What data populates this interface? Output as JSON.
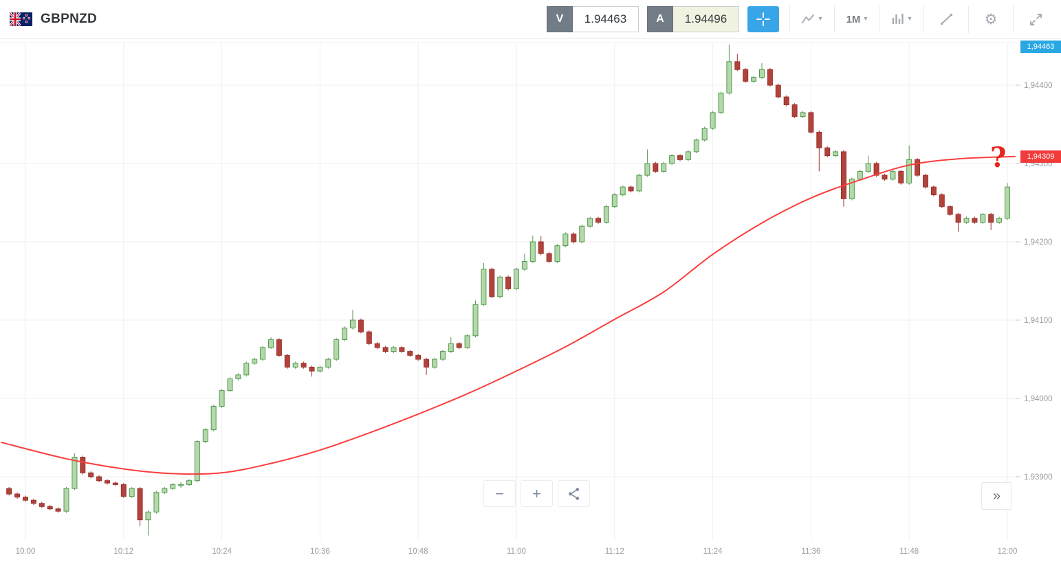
{
  "header": {
    "symbol": "GBPNZD",
    "sell_button": {
      "label": "V",
      "price": "1.94463"
    },
    "buy_button": {
      "label": "A",
      "price": "1.94496"
    },
    "timeframe": "1M"
  },
  "icons": {
    "caret_down": "▾",
    "gear": "⚙",
    "zoom_out": "−",
    "zoom_in": "+",
    "collapse_chevrons": "»"
  },
  "annotation": {
    "question_mark": "?"
  },
  "colors": {
    "up_fill": "#b4d8ab",
    "up_stroke": "#539a4e",
    "down_fill": "#b2423c",
    "down_stroke": "#9a322d",
    "ma_line": "#fb3e3e",
    "grid": "#efefef",
    "tick": "#c9c9c9",
    "axis_text": "#9b9b9b",
    "badge_current": "#29a7e3",
    "badge_ma": "#f23b3b",
    "accent_blue": "#38a5e8"
  },
  "chart_data": {
    "type": "candlestick",
    "title": "GBPNZD 1-minute chart",
    "timeframe": "1M",
    "grid": true,
    "current_price_label": "1,94463",
    "current_price": 1.94463,
    "ma_value_label": "1,94309",
    "ma_value": 1.94309,
    "y_axis": [
      {
        "price": 1.944,
        "label": "1,94400"
      },
      {
        "price": 1.943,
        "label": "1,94300"
      },
      {
        "price": 1.942,
        "label": "1,94200"
      },
      {
        "price": 1.941,
        "label": "1,94100"
      },
      {
        "price": 1.94,
        "label": "1,94000"
      },
      {
        "price": 1.939,
        "label": "1,93900"
      }
    ],
    "x_ticks": [
      {
        "minute": 0,
        "label": "10:00"
      },
      {
        "minute": 12,
        "label": "10:12"
      },
      {
        "minute": 24,
        "label": "10:24"
      },
      {
        "minute": 36,
        "label": "10:36"
      },
      {
        "minute": 48,
        "label": "10:48"
      },
      {
        "minute": 60,
        "label": "11:00"
      },
      {
        "minute": 72,
        "label": "11:12"
      },
      {
        "minute": 84,
        "label": "11:24"
      },
      {
        "minute": 96,
        "label": "11:36"
      },
      {
        "minute": 108,
        "label": "11:48"
      },
      {
        "minute": 120,
        "label": "12:00"
      }
    ],
    "start_minute": -2,
    "candle_format": "open,high,low,close",
    "candles": [
      [
        1.93885,
        1.93887,
        1.93876,
        1.93878
      ],
      [
        1.93878,
        1.9388,
        1.93872,
        1.93874
      ],
      [
        1.93874,
        1.93876,
        1.93868,
        1.9387
      ],
      [
        1.9387,
        1.93872,
        1.93864,
        1.93866
      ],
      [
        1.93866,
        1.93868,
        1.9386,
        1.93862
      ],
      [
        1.93862,
        1.93864,
        1.93857,
        1.93859
      ],
      [
        1.93859,
        1.93861,
        1.93854,
        1.93856
      ],
      [
        1.93856,
        1.93887,
        1.93854,
        1.93885
      ],
      [
        1.93885,
        1.9393,
        1.93883,
        1.93925
      ],
      [
        1.93925,
        1.93927,
        1.93903,
        1.93905
      ],
      [
        1.93905,
        1.93907,
        1.93898,
        1.939
      ],
      [
        1.939,
        1.93902,
        1.93893,
        1.93895
      ],
      [
        1.93895,
        1.93897,
        1.9389,
        1.93892
      ],
      [
        1.93892,
        1.93894,
        1.93888,
        1.9389
      ],
      [
        1.9389,
        1.93892,
        1.93873,
        1.93875
      ],
      [
        1.93875,
        1.93887,
        1.93873,
        1.93885
      ],
      [
        1.93885,
        1.93887,
        1.93837,
        1.93845
      ],
      [
        1.93845,
        1.93857,
        1.93825,
        1.93855
      ],
      [
        1.93855,
        1.93882,
        1.93853,
        1.9388
      ],
      [
        1.9388,
        1.93887,
        1.93878,
        1.93885
      ],
      [
        1.93885,
        1.93892,
        1.93883,
        1.9389
      ],
      [
        1.9389,
        1.93893,
        1.93886,
        1.9389
      ],
      [
        1.9389,
        1.93897,
        1.93888,
        1.93895
      ],
      [
        1.93895,
        1.93947,
        1.93893,
        1.93945
      ],
      [
        1.93945,
        1.93962,
        1.93943,
        1.9396
      ],
      [
        1.9396,
        1.93992,
        1.93958,
        1.9399
      ],
      [
        1.9399,
        1.94012,
        1.93988,
        1.9401
      ],
      [
        1.9401,
        1.94027,
        1.94008,
        1.94025
      ],
      [
        1.94025,
        1.94032,
        1.94023,
        1.9403
      ],
      [
        1.9403,
        1.94047,
        1.94028,
        1.94045
      ],
      [
        1.94045,
        1.94052,
        1.94043,
        1.9405
      ],
      [
        1.9405,
        1.94067,
        1.94048,
        1.94065
      ],
      [
        1.94065,
        1.94078,
        1.94063,
        1.94075
      ],
      [
        1.94075,
        1.94077,
        1.94053,
        1.94055
      ],
      [
        1.94055,
        1.94057,
        1.94038,
        1.9404
      ],
      [
        1.9404,
        1.94047,
        1.94038,
        1.94045
      ],
      [
        1.94045,
        1.94047,
        1.94038,
        1.9404
      ],
      [
        1.9404,
        1.94042,
        1.94028,
        1.94035
      ],
      [
        1.94035,
        1.94042,
        1.94033,
        1.9404
      ],
      [
        1.9404,
        1.94052,
        1.94038,
        1.9405
      ],
      [
        1.9405,
        1.94077,
        1.94048,
        1.94075
      ],
      [
        1.94075,
        1.94092,
        1.94073,
        1.9409
      ],
      [
        1.9409,
        1.94113,
        1.94088,
        1.941
      ],
      [
        1.941,
        1.94102,
        1.94083,
        1.94085
      ],
      [
        1.94085,
        1.94087,
        1.94068,
        1.9407
      ],
      [
        1.9407,
        1.94072,
        1.94063,
        1.94065
      ],
      [
        1.94065,
        1.94067,
        1.94058,
        1.9406
      ],
      [
        1.9406,
        1.94067,
        1.94058,
        1.94065
      ],
      [
        1.94065,
        1.94067,
        1.94058,
        1.9406
      ],
      [
        1.9406,
        1.94062,
        1.94053,
        1.94055
      ],
      [
        1.94055,
        1.94057,
        1.94048,
        1.9405
      ],
      [
        1.9405,
        1.94052,
        1.9403,
        1.9404
      ],
      [
        1.9404,
        1.94052,
        1.94038,
        1.9405
      ],
      [
        1.9405,
        1.94062,
        1.94048,
        1.9406
      ],
      [
        1.9406,
        1.94078,
        1.94058,
        1.9407
      ],
      [
        1.9407,
        1.94072,
        1.94063,
        1.94065
      ],
      [
        1.94065,
        1.94082,
        1.94063,
        1.9408
      ],
      [
        1.9408,
        1.94125,
        1.94078,
        1.9412
      ],
      [
        1.9412,
        1.94173,
        1.94118,
        1.94165
      ],
      [
        1.94165,
        1.94167,
        1.94128,
        1.9413
      ],
      [
        1.9413,
        1.94157,
        1.94128,
        1.94155
      ],
      [
        1.94155,
        1.94157,
        1.94138,
        1.9414
      ],
      [
        1.9414,
        1.94167,
        1.94138,
        1.94165
      ],
      [
        1.94165,
        1.94185,
        1.94163,
        1.94175
      ],
      [
        1.94175,
        1.94208,
        1.94173,
        1.942
      ],
      [
        1.942,
        1.94207,
        1.94183,
        1.94185
      ],
      [
        1.94185,
        1.94187,
        1.94173,
        1.94175
      ],
      [
        1.94175,
        1.94197,
        1.94173,
        1.94195
      ],
      [
        1.94195,
        1.94212,
        1.94193,
        1.9421
      ],
      [
        1.9421,
        1.94212,
        1.94198,
        1.942
      ],
      [
        1.942,
        1.94222,
        1.94198,
        1.9422
      ],
      [
        1.9422,
        1.94232,
        1.94218,
        1.9423
      ],
      [
        1.9423,
        1.94232,
        1.94223,
        1.94225
      ],
      [
        1.94225,
        1.94247,
        1.94223,
        1.94245
      ],
      [
        1.94245,
        1.94262,
        1.94243,
        1.9426
      ],
      [
        1.9426,
        1.94272,
        1.94258,
        1.9427
      ],
      [
        1.9427,
        1.94272,
        1.94263,
        1.94265
      ],
      [
        1.94265,
        1.94287,
        1.94263,
        1.94285
      ],
      [
        1.94285,
        1.94318,
        1.94283,
        1.943
      ],
      [
        1.943,
        1.94302,
        1.94288,
        1.9429
      ],
      [
        1.9429,
        1.94302,
        1.94288,
        1.943
      ],
      [
        1.943,
        1.94312,
        1.94298,
        1.9431
      ],
      [
        1.9431,
        1.94312,
        1.94303,
        1.94305
      ],
      [
        1.94305,
        1.94317,
        1.94303,
        1.94315
      ],
      [
        1.94315,
        1.94332,
        1.94313,
        1.9433
      ],
      [
        1.9433,
        1.94347,
        1.94328,
        1.94345
      ],
      [
        1.94345,
        1.94367,
        1.94343,
        1.94365
      ],
      [
        1.94365,
        1.94392,
        1.94363,
        1.9439
      ],
      [
        1.9439,
        1.94452,
        1.94388,
        1.9443
      ],
      [
        1.9443,
        1.9444,
        1.94418,
        1.9442
      ],
      [
        1.9442,
        1.94422,
        1.94403,
        1.94405
      ],
      [
        1.94405,
        1.94412,
        1.94403,
        1.9441
      ],
      [
        1.9441,
        1.94428,
        1.94408,
        1.9442
      ],
      [
        1.9442,
        1.94422,
        1.94398,
        1.944
      ],
      [
        1.944,
        1.94402,
        1.94383,
        1.94385
      ],
      [
        1.94385,
        1.94387,
        1.94373,
        1.94375
      ],
      [
        1.94375,
        1.94377,
        1.94358,
        1.9436
      ],
      [
        1.9436,
        1.94367,
        1.94358,
        1.94365
      ],
      [
        1.94365,
        1.94367,
        1.94338,
        1.9434
      ],
      [
        1.9434,
        1.94342,
        1.9429,
        1.9432
      ],
      [
        1.9432,
        1.94322,
        1.94308,
        1.9431
      ],
      [
        1.9431,
        1.94317,
        1.94308,
        1.94315
      ],
      [
        1.94315,
        1.94317,
        1.94245,
        1.94255
      ],
      [
        1.94255,
        1.94282,
        1.94253,
        1.9428
      ],
      [
        1.9428,
        1.94292,
        1.94278,
        1.9429
      ],
      [
        1.9429,
        1.9431,
        1.94288,
        1.943
      ],
      [
        1.943,
        1.94302,
        1.94283,
        1.94285
      ],
      [
        1.94285,
        1.94287,
        1.94278,
        1.9428
      ],
      [
        1.9428,
        1.94292,
        1.94278,
        1.9429
      ],
      [
        1.9429,
        1.94292,
        1.94273,
        1.94275
      ],
      [
        1.94275,
        1.94323,
        1.94273,
        1.94305
      ],
      [
        1.94305,
        1.94307,
        1.94283,
        1.94285
      ],
      [
        1.94285,
        1.94287,
        1.94268,
        1.9427
      ],
      [
        1.9427,
        1.94272,
        1.94258,
        1.9426
      ],
      [
        1.9426,
        1.94262,
        1.94243,
        1.94245
      ],
      [
        1.94245,
        1.94247,
        1.94233,
        1.94235
      ],
      [
        1.94235,
        1.94237,
        1.94213,
        1.94225
      ],
      [
        1.94225,
        1.94232,
        1.94223,
        1.9423
      ],
      [
        1.9423,
        1.94232,
        1.94223,
        1.94225
      ],
      [
        1.94225,
        1.94237,
        1.94223,
        1.94235
      ],
      [
        1.94235,
        1.94237,
        1.94215,
        1.94225
      ],
      [
        1.94225,
        1.94232,
        1.94223,
        1.9423
      ],
      [
        1.9423,
        1.94275,
        1.94228,
        1.9427
      ]
    ],
    "ma_points": [
      [
        -3,
        1.93944
      ],
      [
        5,
        1.93923
      ],
      [
        12,
        1.9391
      ],
      [
        18,
        1.93904
      ],
      [
        24,
        1.93905
      ],
      [
        30,
        1.93917
      ],
      [
        36,
        1.93934
      ],
      [
        42,
        1.93956
      ],
      [
        48,
        1.9398
      ],
      [
        54,
        1.94006
      ],
      [
        60,
        1.94035
      ],
      [
        66,
        1.94066
      ],
      [
        72,
        1.94101
      ],
      [
        78,
        1.94136
      ],
      [
        84,
        1.94184
      ],
      [
        90,
        1.94224
      ],
      [
        96,
        1.94256
      ],
      [
        102,
        1.94279
      ],
      [
        108,
        1.94298
      ],
      [
        114,
        1.94306
      ],
      [
        121,
        1.94309
      ]
    ]
  },
  "footer_controls": {
    "zoom_out": "−",
    "zoom_in": "+",
    "collapse": "»"
  }
}
